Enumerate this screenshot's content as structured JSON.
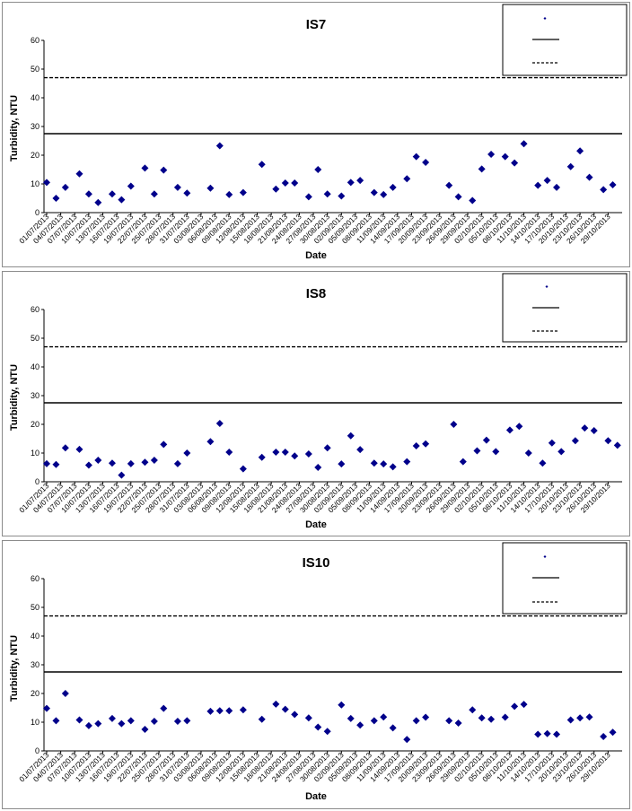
{
  "chart_data": [
    {
      "type": "scatter",
      "title": "IS7",
      "xlabel": "Date",
      "ylabel": "Turbidity, NTU",
      "ylim": [
        0,
        60
      ],
      "yticks": [
        "0",
        "10",
        "20",
        "30",
        "40",
        "50",
        "60"
      ],
      "grid": false,
      "legend_position": "top-right",
      "x_tick_labels": [
        "01/07/2013",
        "04/07/2013",
        "07/07/2013",
        "10/07/2013",
        "13/07/2013",
        "16/07/2013",
        "19/07/2013",
        "22/07/2013",
        "25/07/2013",
        "28/07/2013",
        "31/07/2013",
        "03/08/2013",
        "06/08/2013",
        "09/08/2013",
        "12/08/2013",
        "15/08/2013",
        "18/08/2013",
        "21/08/2013",
        "24/08/2013",
        "27/08/2013",
        "30/08/2013",
        "02/09/2013",
        "05/09/2013",
        "08/09/2013",
        "11/09/2013",
        "14/09/2013",
        "17/09/2013",
        "20/09/2013",
        "23/09/2013",
        "26/09/2013",
        "29/09/2013",
        "02/10/2013",
        "05/10/2013",
        "08/10/2013",
        "11/10/2013",
        "14/10/2013",
        "17/10/2013",
        "20/10/2013",
        "23/10/2013",
        "26/10/2013",
        "29/10/2013"
      ],
      "series": [
        {
          "marker": "diamond",
          "color": "#00008B",
          "points": [
            {
              "x": "2013-07-01",
              "y": 10.5
            },
            {
              "x": "2013-07-03",
              "y": 5
            },
            {
              "x": "2013-07-05",
              "y": 8.8
            },
            {
              "x": "2013-07-08",
              "y": 13.5
            },
            {
              "x": "2013-07-10",
              "y": 6.5
            },
            {
              "x": "2013-07-12",
              "y": 3.5
            },
            {
              "x": "2013-07-15",
              "y": 6.5
            },
            {
              "x": "2013-07-17",
              "y": 4.5
            },
            {
              "x": "2013-07-19",
              "y": 9.2
            },
            {
              "x": "2013-07-22",
              "y": 15.5
            },
            {
              "x": "2013-07-24",
              "y": 6.5
            },
            {
              "x": "2013-07-26",
              "y": 14.8
            },
            {
              "x": "2013-07-29",
              "y": 8.8
            },
            {
              "x": "2013-07-31",
              "y": 6.8
            },
            {
              "x": "2013-08-05",
              "y": 8.5
            },
            {
              "x": "2013-08-07",
              "y": 23.3
            },
            {
              "x": "2013-08-09",
              "y": 6.3
            },
            {
              "x": "2013-08-12",
              "y": 7
            },
            {
              "x": "2013-08-16",
              "y": 16.8
            },
            {
              "x": "2013-08-19",
              "y": 8.2
            },
            {
              "x": "2013-08-21",
              "y": 10.3
            },
            {
              "x": "2013-08-23",
              "y": 10.3
            },
            {
              "x": "2013-08-26",
              "y": 5.5
            },
            {
              "x": "2013-08-28",
              "y": 15
            },
            {
              "x": "2013-08-30",
              "y": 6.5
            },
            {
              "x": "2013-09-02",
              "y": 5.8
            },
            {
              "x": "2013-09-04",
              "y": 10.5
            },
            {
              "x": "2013-09-06",
              "y": 11.2
            },
            {
              "x": "2013-09-09",
              "y": 7
            },
            {
              "x": "2013-09-11",
              "y": 6.3
            },
            {
              "x": "2013-09-13",
              "y": 8.8
            },
            {
              "x": "2013-09-16",
              "y": 11.8
            },
            {
              "x": "2013-09-18",
              "y": 19.5
            },
            {
              "x": "2013-09-20",
              "y": 17.5
            },
            {
              "x": "2013-09-25",
              "y": 9.5
            },
            {
              "x": "2013-09-27",
              "y": 5.5
            },
            {
              "x": "2013-09-30",
              "y": 4.2
            },
            {
              "x": "2013-10-02",
              "y": 15.2
            },
            {
              "x": "2013-10-04",
              "y": 20.3
            },
            {
              "x": "2013-10-07",
              "y": 19.5
            },
            {
              "x": "2013-10-09",
              "y": 17.3
            },
            {
              "x": "2013-10-11",
              "y": 24
            },
            {
              "x": "2013-10-14",
              "y": 9.5
            },
            {
              "x": "2013-10-16",
              "y": 11.2
            },
            {
              "x": "2013-10-18",
              "y": 8.8
            },
            {
              "x": "2013-10-21",
              "y": 16
            },
            {
              "x": "2013-10-23",
              "y": 21.5
            },
            {
              "x": "2013-10-25",
              "y": 12.3
            },
            {
              "x": "2013-10-28",
              "y": 8
            },
            {
              "x": "2013-10-30",
              "y": 9.7
            }
          ]
        }
      ],
      "reference_lines": [
        {
          "y": 27.5,
          "style": "solid",
          "color": "#000000"
        },
        {
          "y": 47,
          "style": "dashed",
          "color": "#000000"
        }
      ]
    },
    {
      "type": "scatter",
      "title": "IS8",
      "xlabel": "Date",
      "ylabel": "Turbidity, NTU",
      "ylim": [
        0,
        60
      ],
      "yticks": [
        "0",
        "10",
        "20",
        "30",
        "40",
        "50",
        "60"
      ],
      "grid": false,
      "legend_position": "top-right",
      "x_tick_labels": [
        "01/07/2013",
        "04/07/2013",
        "07/07/2013",
        "10/07/2013",
        "13/07/2013",
        "16/07/2013",
        "19/07/2013",
        "22/07/2013",
        "25/07/2013",
        "28/07/2013",
        "31/07/2013",
        "03/08/2013",
        "06/08/2013",
        "09/08/2013",
        "12/08/2013",
        "15/08/2013",
        "18/08/2013",
        "21/08/2013",
        "24/08/2013",
        "27/08/2013",
        "30/08/2013",
        "02/09/2013",
        "05/09/2013",
        "08/09/2013",
        "11/09/2013",
        "14/09/2013",
        "17/09/2013",
        "20/09/2013",
        "23/09/2013",
        "26/09/2013",
        "29/09/2013",
        "02/10/2013",
        "05/10/2013",
        "08/10/2013",
        "11/10/2013",
        "14/10/2013",
        "17/10/2013",
        "20/10/2013",
        "23/10/2013",
        "26/10/2013",
        "29/10/2013"
      ],
      "series": [
        {
          "marker": "diamond",
          "color": "#00008B",
          "points": [
            {
              "x": "2013-07-01",
              "y": 6.3
            },
            {
              "x": "2013-07-03",
              "y": 6
            },
            {
              "x": "2013-07-05",
              "y": 11.8
            },
            {
              "x": "2013-07-08",
              "y": 11.3
            },
            {
              "x": "2013-07-10",
              "y": 5.8
            },
            {
              "x": "2013-07-12",
              "y": 7.5
            },
            {
              "x": "2013-07-15",
              "y": 6.5
            },
            {
              "x": "2013-07-17",
              "y": 2.3
            },
            {
              "x": "2013-07-19",
              "y": 6.3
            },
            {
              "x": "2013-07-22",
              "y": 6.8
            },
            {
              "x": "2013-07-24",
              "y": 7.5
            },
            {
              "x": "2013-07-26",
              "y": 13
            },
            {
              "x": "2013-07-29",
              "y": 6.3
            },
            {
              "x": "2013-07-31",
              "y": 10
            },
            {
              "x": "2013-08-05",
              "y": 14
            },
            {
              "x": "2013-08-07",
              "y": 20.3
            },
            {
              "x": "2013-08-09",
              "y": 10.3
            },
            {
              "x": "2013-08-12",
              "y": 4.5
            },
            {
              "x": "2013-08-16",
              "y": 8.5
            },
            {
              "x": "2013-08-19",
              "y": 10.3
            },
            {
              "x": "2013-08-21",
              "y": 10.3
            },
            {
              "x": "2013-08-23",
              "y": 9
            },
            {
              "x": "2013-08-26",
              "y": 9.7
            },
            {
              "x": "2013-08-28",
              "y": 5
            },
            {
              "x": "2013-08-30",
              "y": 11.8
            },
            {
              "x": "2013-09-02",
              "y": 6.2
            },
            {
              "x": "2013-09-04",
              "y": 16
            },
            {
              "x": "2013-09-06",
              "y": 11.2
            },
            {
              "x": "2013-09-09",
              "y": 6.5
            },
            {
              "x": "2013-09-11",
              "y": 6.2
            },
            {
              "x": "2013-09-13",
              "y": 5.2
            },
            {
              "x": "2013-09-16",
              "y": 7
            },
            {
              "x": "2013-09-18",
              "y": 12.5
            },
            {
              "x": "2013-09-20",
              "y": 13.2
            },
            {
              "x": "2013-09-26",
              "y": 20
            },
            {
              "x": "2013-09-28",
              "y": 7
            },
            {
              "x": "2013-10-01",
              "y": 10.8
            },
            {
              "x": "2013-10-03",
              "y": 14.5
            },
            {
              "x": "2013-10-05",
              "y": 10.5
            },
            {
              "x": "2013-10-08",
              "y": 18
            },
            {
              "x": "2013-10-10",
              "y": 19.3
            },
            {
              "x": "2013-10-12",
              "y": 10
            },
            {
              "x": "2013-10-15",
              "y": 6.5
            },
            {
              "x": "2013-10-17",
              "y": 13.5
            },
            {
              "x": "2013-10-19",
              "y": 10.5
            },
            {
              "x": "2013-10-22",
              "y": 14.3
            },
            {
              "x": "2013-10-24",
              "y": 18.7
            },
            {
              "x": "2013-10-26",
              "y": 17.8
            },
            {
              "x": "2013-10-29",
              "y": 14.3
            },
            {
              "x": "2013-10-31",
              "y": 12.7
            }
          ]
        }
      ],
      "reference_lines": [
        {
          "y": 27.5,
          "style": "solid",
          "color": "#000000"
        },
        {
          "y": 47,
          "style": "dashed",
          "color": "#000000"
        }
      ]
    },
    {
      "type": "scatter",
      "title": "IS10",
      "xlabel": "Date",
      "ylabel": "Turbidity, NTU",
      "ylim": [
        0,
        60
      ],
      "yticks": [
        "0",
        "10",
        "20",
        "30",
        "40",
        "50",
        "60"
      ],
      "grid": false,
      "legend_position": "top-right",
      "x_tick_labels": [
        "01/07/2013",
        "04/07/2013",
        "07/07/2013",
        "10/07/2013",
        "13/07/2013",
        "16/07/2013",
        "19/07/2013",
        "22/07/2013",
        "25/07/2013",
        "28/07/2013",
        "31/07/2013",
        "03/08/2013",
        "06/08/2013",
        "09/08/2013",
        "12/08/2013",
        "15/08/2013",
        "18/08/2013",
        "21/08/2013",
        "24/08/2013",
        "27/08/2013",
        "30/08/2013",
        "02/09/2013",
        "05/09/2013",
        "08/09/2013",
        "11/09/2013",
        "14/09/2013",
        "17/09/2013",
        "20/09/2013",
        "23/09/2013",
        "26/09/2013",
        "29/09/2013",
        "02/10/2013",
        "05/10/2013",
        "08/10/2013",
        "11/10/2013",
        "14/10/2013",
        "17/10/2013",
        "20/10/2013",
        "23/10/2013",
        "26/10/2013",
        "29/10/2013"
      ],
      "series": [
        {
          "marker": "diamond",
          "color": "#00008B",
          "points": [
            {
              "x": "2013-07-01",
              "y": 14.8
            },
            {
              "x": "2013-07-03",
              "y": 10.5
            },
            {
              "x": "2013-07-05",
              "y": 20
            },
            {
              "x": "2013-07-08",
              "y": 10.8
            },
            {
              "x": "2013-07-10",
              "y": 8.8
            },
            {
              "x": "2013-07-12",
              "y": 9.5
            },
            {
              "x": "2013-07-15",
              "y": 11.3
            },
            {
              "x": "2013-07-17",
              "y": 9.5
            },
            {
              "x": "2013-07-19",
              "y": 10.5
            },
            {
              "x": "2013-07-22",
              "y": 7.5
            },
            {
              "x": "2013-07-24",
              "y": 10.3
            },
            {
              "x": "2013-07-26",
              "y": 14.8
            },
            {
              "x": "2013-07-29",
              "y": 10.3
            },
            {
              "x": "2013-07-31",
              "y": 10.5
            },
            {
              "x": "2013-08-05",
              "y": 13.8
            },
            {
              "x": "2013-08-07",
              "y": 14
            },
            {
              "x": "2013-08-09",
              "y": 14
            },
            {
              "x": "2013-08-12",
              "y": 14.3
            },
            {
              "x": "2013-08-16",
              "y": 11
            },
            {
              "x": "2013-08-19",
              "y": 16.3
            },
            {
              "x": "2013-08-21",
              "y": 14.5
            },
            {
              "x": "2013-08-23",
              "y": 12.7
            },
            {
              "x": "2013-08-26",
              "y": 11.5
            },
            {
              "x": "2013-08-28",
              "y": 8.3
            },
            {
              "x": "2013-08-30",
              "y": 6.8
            },
            {
              "x": "2013-09-02",
              "y": 16
            },
            {
              "x": "2013-09-04",
              "y": 11.3
            },
            {
              "x": "2013-09-06",
              "y": 9
            },
            {
              "x": "2013-09-09",
              "y": 10.5
            },
            {
              "x": "2013-09-11",
              "y": 11.8
            },
            {
              "x": "2013-09-13",
              "y": 8
            },
            {
              "x": "2013-09-16",
              "y": 4
            },
            {
              "x": "2013-09-18",
              "y": 10.5
            },
            {
              "x": "2013-09-20",
              "y": 11.7
            },
            {
              "x": "2013-09-25",
              "y": 10.5
            },
            {
              "x": "2013-09-27",
              "y": 9.7
            },
            {
              "x": "2013-09-30",
              "y": 14.3
            },
            {
              "x": "2013-10-02",
              "y": 11.5
            },
            {
              "x": "2013-10-04",
              "y": 11
            },
            {
              "x": "2013-10-07",
              "y": 11.7
            },
            {
              "x": "2013-10-09",
              "y": 15.5
            },
            {
              "x": "2013-10-11",
              "y": 16.2
            },
            {
              "x": "2013-10-14",
              "y": 5.8
            },
            {
              "x": "2013-10-16",
              "y": 6
            },
            {
              "x": "2013-10-18",
              "y": 5.8
            },
            {
              "x": "2013-10-21",
              "y": 10.8
            },
            {
              "x": "2013-10-23",
              "y": 11.5
            },
            {
              "x": "2013-10-25",
              "y": 11.8
            },
            {
              "x": "2013-10-28",
              "y": 5
            },
            {
              "x": "2013-10-30",
              "y": 6.5
            }
          ]
        }
      ],
      "reference_lines": [
        {
          "y": 27.5,
          "style": "solid",
          "color": "#000000"
        },
        {
          "y": 47,
          "style": "dashed",
          "color": "#000000"
        }
      ]
    }
  ]
}
